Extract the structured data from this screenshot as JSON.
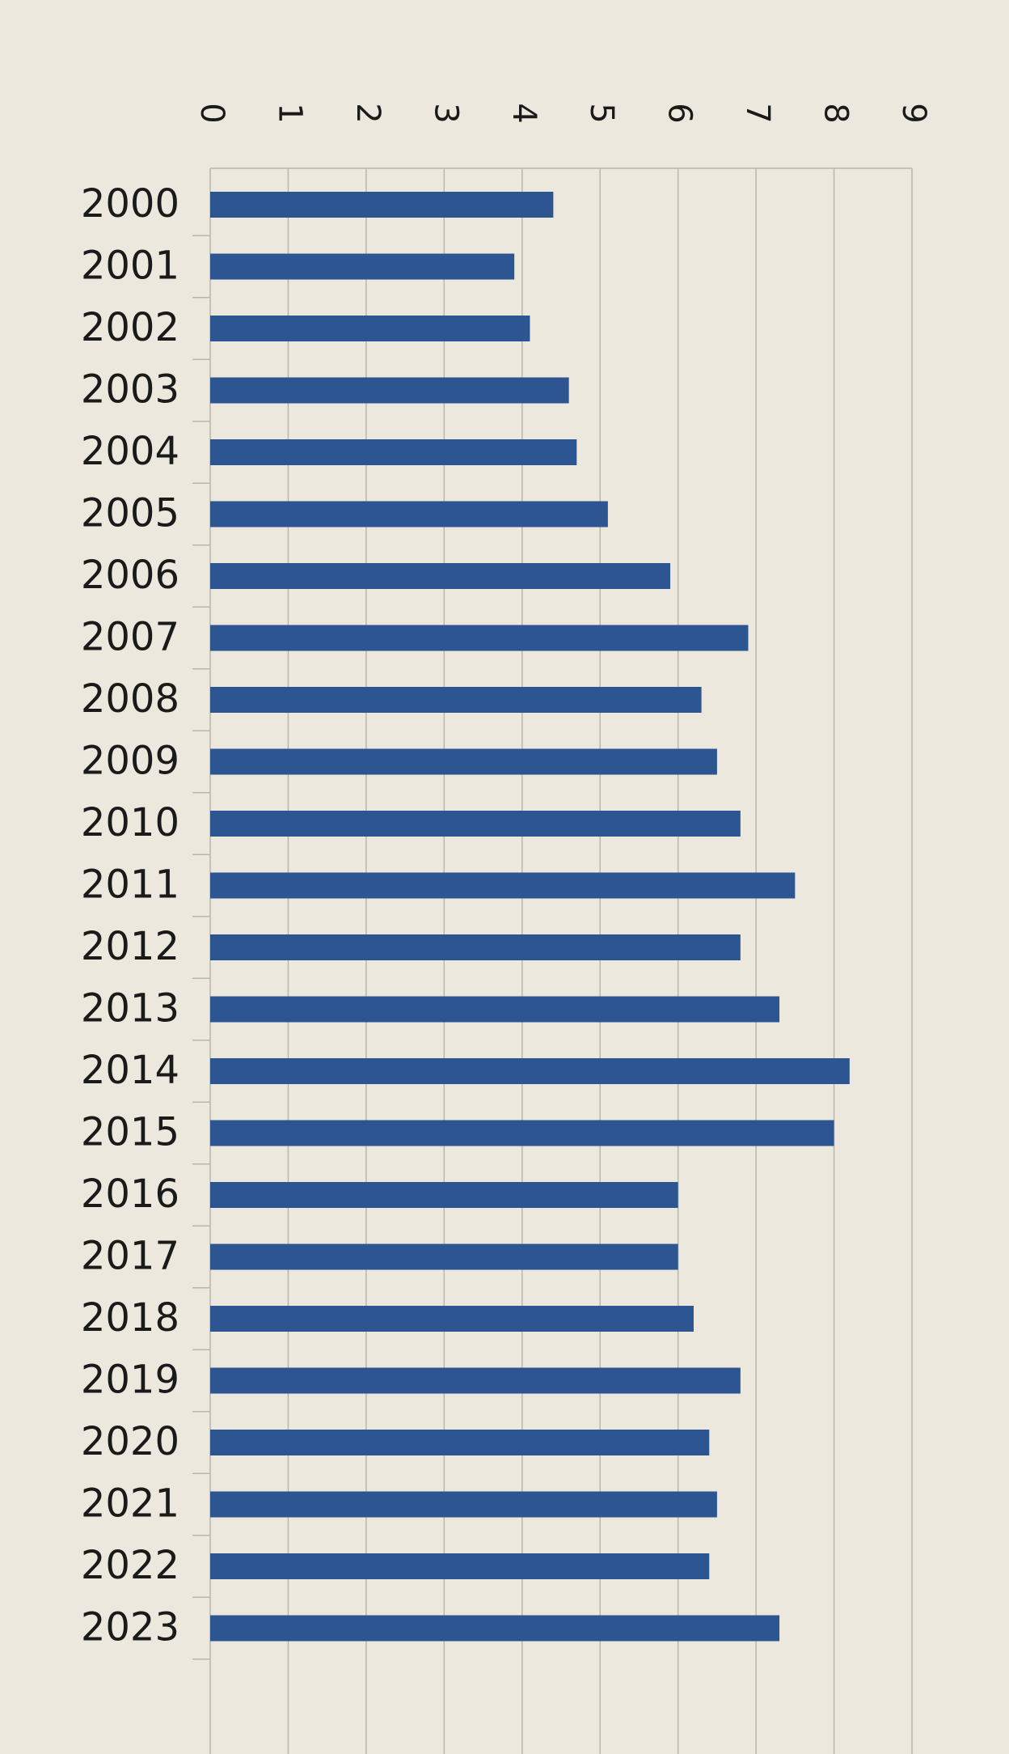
{
  "chart_data": {
    "type": "bar",
    "orientation": "horizontal",
    "categories": [
      "2000",
      "2001",
      "2002",
      "2003",
      "2004",
      "2005",
      "2006",
      "2007",
      "2008",
      "2009",
      "2010",
      "2011",
      "2012",
      "2013",
      "2014",
      "2015",
      "2016",
      "2017",
      "2018",
      "2019",
      "2020",
      "2021",
      "2022",
      "2023"
    ],
    "values": [
      4.4,
      3.9,
      4.1,
      4.6,
      4.7,
      5.1,
      5.9,
      6.9,
      6.3,
      6.5,
      6.8,
      7.5,
      6.8,
      7.3,
      8.2,
      8.0,
      6.0,
      6.0,
      6.2,
      6.8,
      6.4,
      6.5,
      6.4,
      7.3
    ],
    "color": "#2c5591",
    "xlim": [
      0,
      9
    ],
    "xticks": [
      0,
      1,
      2,
      3,
      4,
      5,
      6,
      7,
      8,
      9
    ],
    "grid": true
  }
}
